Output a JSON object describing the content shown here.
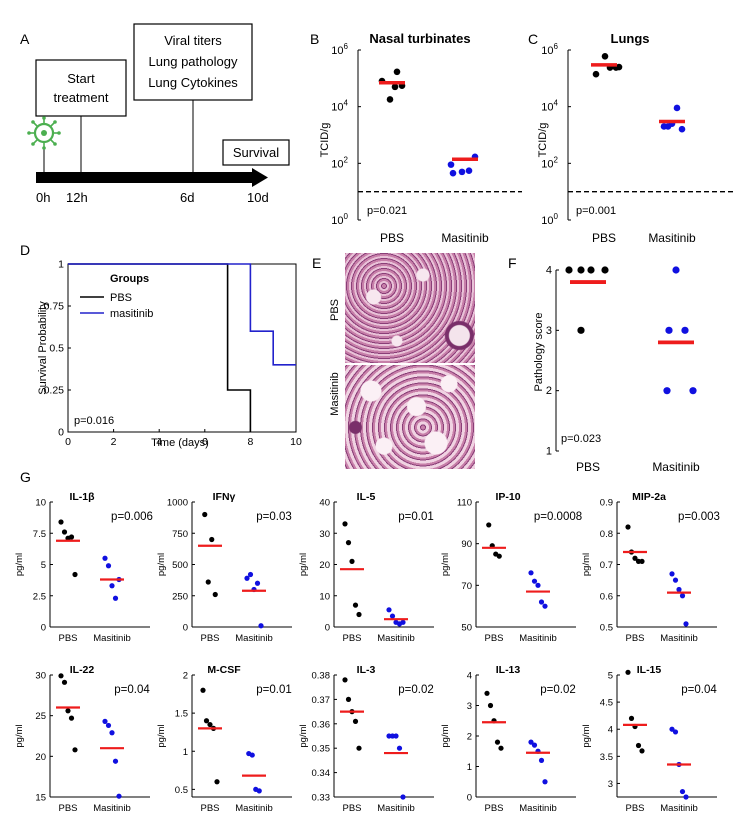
{
  "colors": {
    "accent": "#ee1c1c",
    "pbs_dot": "#000000",
    "masitinib_dot": "#1010e0",
    "masitinib_line": "#2222cc",
    "virus": "#4caf50",
    "tissue_a": "#c77fa9",
    "tissue_b": "#8a3e78",
    "tissue_bg": "#f3dbe8"
  },
  "panelA": {
    "letter": "A",
    "box1": [
      "Start",
      "treatment"
    ],
    "box2": [
      "Viral titers",
      "Lung pathology",
      "Lung Cytokines"
    ],
    "box3": "Survival",
    "time_labels": [
      "0h",
      "12h",
      "6d",
      "10d"
    ],
    "virus_icon": "virus-icon"
  },
  "panelB": {
    "letter": "B",
    "title": "Nasal turbinates",
    "ylabel": "TCID/g",
    "pvalue": "p=0.021"
  },
  "panelC": {
    "letter": "C",
    "title": "Lungs",
    "ylabel": "TCID/g",
    "pvalue": "p=0.001"
  },
  "panelD": {
    "letter": "D",
    "ylabel": "Survival Probability",
    "xlabel": "Time (days)",
    "legend_title": "Groups",
    "legend_pbs": "PBS",
    "legend_masitinib": "masitinib",
    "pvalue": "p=0.016"
  },
  "panelE": {
    "letter": "E",
    "label_top": "PBS",
    "label_bottom": "Masitinib"
  },
  "panelF": {
    "letter": "F",
    "ylabel": "Pathology score",
    "pvalue": "p=0.023"
  },
  "panelG": {
    "letter": "G",
    "ylabel": "pg/ml"
  },
  "chart_data": [
    {
      "id": "B",
      "type": "scatter",
      "title": "Nasal turbinates",
      "ylabel": "TCID/g",
      "yscale": "log",
      "ylim": [
        1,
        1000000
      ],
      "yticks": [
        1,
        100,
        10000,
        1000000
      ],
      "ytick_labels": [
        [
          "10",
          "0"
        ],
        [
          "10",
          "2"
        ],
        [
          "10",
          "4"
        ],
        [
          "10",
          "6"
        ]
      ],
      "categories": [
        "PBS",
        "Masitinib"
      ],
      "groups": [
        {
          "name": "PBS",
          "points": [
            18000,
            80000,
            50000,
            55000,
            170000
          ],
          "mean": 70000
        },
        {
          "name": "Masitinib",
          "points": [
            45,
            50,
            90,
            55,
            170
          ],
          "mean": 140
        }
      ],
      "threshold": 10,
      "pvalue": "p=0.021"
    },
    {
      "id": "C",
      "type": "scatter",
      "title": "Lungs",
      "ylabel": "TCID/g",
      "yscale": "log",
      "ylim": [
        1,
        1000000
      ],
      "yticks": [
        1,
        100,
        10000,
        1000000
      ],
      "ytick_labels": [
        [
          "10",
          "0"
        ],
        [
          "10",
          "2"
        ],
        [
          "10",
          "4"
        ],
        [
          "10",
          "6"
        ]
      ],
      "categories": [
        "PBS",
        "Masitinib"
      ],
      "groups": [
        {
          "name": "PBS",
          "points": [
            140000,
            600000,
            240000,
            240000,
            250000
          ],
          "mean": 300000
        },
        {
          "name": "Masitinib",
          "points": [
            2000,
            9000,
            2500,
            1600,
            2000
          ],
          "mean": 3000
        }
      ],
      "threshold": 10,
      "pvalue": "p=0.001"
    },
    {
      "id": "D",
      "type": "line",
      "xlabel": "Time (days)",
      "ylabel": "Survival Probability",
      "xlim": [
        0,
        10
      ],
      "ylim": [
        0,
        1
      ],
      "xticks": [
        0,
        2,
        4,
        6,
        8,
        10
      ],
      "yticks": [
        0,
        0.25,
        0.5,
        0.75,
        1
      ],
      "series": [
        {
          "name": "PBS",
          "x": [
            0,
            7,
            7,
            8,
            8
          ],
          "y": [
            1,
            1,
            0.25,
            0.25,
            0
          ]
        },
        {
          "name": "masitinib",
          "x": [
            0,
            8,
            8,
            9,
            9,
            10
          ],
          "y": [
            1,
            1,
            0.6,
            0.6,
            0.4,
            0.4
          ]
        }
      ],
      "pvalue": "p=0.016"
    },
    {
      "id": "F",
      "type": "scatter",
      "ylabel": "Pathology score",
      "ylim": [
        1,
        4
      ],
      "yticks": [
        1,
        2,
        3,
        4
      ],
      "categories": [
        "PBS",
        "Masitinib"
      ],
      "groups": [
        {
          "name": "PBS",
          "points": [
            4,
            4,
            4,
            4,
            3
          ],
          "mean": 3.8
        },
        {
          "name": "Masitinib",
          "points": [
            4,
            3,
            3,
            2,
            2
          ],
          "mean": 2.8
        }
      ],
      "pvalue": "p=0.023"
    },
    {
      "id": "IL-1b",
      "type": "scatter",
      "title": "IL-1β",
      "ylabel": "pg/ml",
      "ylim": [
        0,
        10
      ],
      "yticks": [
        0,
        2.5,
        5,
        7.5,
        10
      ],
      "ytick_labels": [
        "0",
        "2.5",
        "5",
        "7.5",
        "10"
      ],
      "categories": [
        "PBS",
        "Masitinib"
      ],
      "groups": [
        {
          "name": "PBS",
          "points": [
            8.4,
            7.6,
            7.1,
            7.2,
            4.2
          ],
          "mean": 6.9
        },
        {
          "name": "Masitinib",
          "points": [
            5.5,
            4.9,
            3.3,
            2.3,
            3.8
          ],
          "mean": 3.8
        }
      ],
      "pvalue": "p=0.006"
    },
    {
      "id": "IFN-g",
      "type": "scatter",
      "title": "IFNγ",
      "ylabel": "pg/ml",
      "ylim": [
        0,
        1000
      ],
      "yticks": [
        0,
        250,
        500,
        750,
        1000
      ],
      "ytick_labels": [
        "0",
        "250",
        "500",
        "750",
        "1000"
      ],
      "categories": [
        "PBS",
        "Masitinib"
      ],
      "groups": [
        {
          "name": "PBS",
          "points": [
            900,
            360,
            700,
            260
          ],
          "mean": 650
        },
        {
          "name": "Masitinib",
          "points": [
            390,
            420,
            300,
            350,
            10
          ],
          "mean": 290
        }
      ],
      "pvalue": "p=0.03"
    },
    {
      "id": "IL-5",
      "type": "scatter",
      "title": "IL-5",
      "ylabel": "pg/ml",
      "ylim": [
        0,
        40
      ],
      "yticks": [
        0,
        10,
        20,
        30,
        40
      ],
      "ytick_labels": [
        "0",
        "10",
        "20",
        "30",
        "40"
      ],
      "categories": [
        "PBS",
        "Masitinib"
      ],
      "groups": [
        {
          "name": "PBS",
          "points": [
            33,
            27,
            21,
            7,
            4
          ],
          "mean": 18.5
        },
        {
          "name": "Masitinib",
          "points": [
            5.5,
            3.5,
            1.5,
            1,
            1.5
          ],
          "mean": 2.5
        }
      ],
      "pvalue": "p=0.01"
    },
    {
      "id": "IP-10",
      "type": "scatter",
      "title": "IP-10",
      "ylabel": "pg/ml",
      "ylim": [
        50,
        110
      ],
      "yticks": [
        50,
        70,
        90,
        110
      ],
      "ytick_labels": [
        "50",
        "70",
        "90",
        "110"
      ],
      "categories": [
        "PBS",
        "Masitinib"
      ],
      "groups": [
        {
          "name": "PBS",
          "points": [
            99,
            89,
            85,
            84
          ],
          "mean": 88
        },
        {
          "name": "Masitinib",
          "points": [
            76,
            72,
            70,
            62,
            60
          ],
          "mean": 67
        }
      ],
      "pvalue": "p=0.0008"
    },
    {
      "id": "MIP-2a",
      "type": "scatter",
      "title": "MIP-2a",
      "ylabel": "pg/ml",
      "ylim": [
        0.5,
        0.9
      ],
      "yticks": [
        0.5,
        0.6,
        0.7,
        0.8,
        0.9
      ],
      "ytick_labels": [
        "0.5",
        "0.6",
        "0.7",
        "0.8",
        "0.9"
      ],
      "categories": [
        "PBS",
        "Masitinib"
      ],
      "groups": [
        {
          "name": "PBS",
          "points": [
            0.82,
            0.74,
            0.72,
            0.71,
            0.71
          ],
          "mean": 0.74
        },
        {
          "name": "Masitinib",
          "points": [
            0.67,
            0.65,
            0.62,
            0.6,
            0.51
          ],
          "mean": 0.61
        }
      ],
      "pvalue": "p=0.003"
    },
    {
      "id": "IL-22",
      "type": "scatter",
      "title": "IL-22",
      "ylabel": "pg/ml",
      "ylim": [
        15,
        30
      ],
      "yticks": [
        15,
        20,
        25,
        30
      ],
      "ytick_labels": [
        "15",
        "20",
        "25",
        "30"
      ],
      "categories": [
        "PBS",
        "Masitinib"
      ],
      "groups": [
        {
          "name": "PBS",
          "points": [
            29.9,
            29.1,
            25.6,
            24.7,
            20.8
          ],
          "mean": 26
        },
        {
          "name": "Masitinib",
          "points": [
            24.3,
            23.8,
            22.9,
            19.4,
            15.1
          ],
          "mean": 21
        }
      ],
      "pvalue": "p=0.04"
    },
    {
      "id": "M-CSF",
      "type": "scatter",
      "title": "M-CSF",
      "ylabel": "pg/ml",
      "ylim": [
        0.4,
        2
      ],
      "yticks": [
        0.5,
        1,
        1.5,
        2
      ],
      "ytick_labels": [
        "0.5",
        "1",
        "1.5",
        "2"
      ],
      "categories": [
        "PBS",
        "Masitinib"
      ],
      "groups": [
        {
          "name": "PBS",
          "points": [
            1.8,
            1.4,
            1.35,
            1.3,
            0.6
          ],
          "mean": 1.3
        },
        {
          "name": "Masitinib",
          "points": [
            0.97,
            0.95,
            0.5,
            0.48
          ],
          "mean": 0.68
        }
      ],
      "pvalue": "p=0.01"
    },
    {
      "id": "IL-3",
      "type": "scatter",
      "title": "IL-3",
      "ylabel": "pg/ml",
      "ylim": [
        0.33,
        0.38
      ],
      "yticks": [
        0.33,
        0.34,
        0.35,
        0.36,
        0.37,
        0.38
      ],
      "ytick_labels": [
        "0.33",
        "0.34",
        "0.35",
        "0.36",
        "0.37",
        "0.38"
      ],
      "categories": [
        "PBS",
        "Masitinib"
      ],
      "groups": [
        {
          "name": "PBS",
          "points": [
            0.378,
            0.37,
            0.365,
            0.361,
            0.35
          ],
          "mean": 0.365
        },
        {
          "name": "Masitinib",
          "points": [
            0.355,
            0.355,
            0.355,
            0.35,
            0.33
          ],
          "mean": 0.348
        }
      ],
      "pvalue": "p=0.02"
    },
    {
      "id": "IL-13",
      "type": "scatter",
      "title": "IL-13",
      "ylabel": "pg/ml",
      "ylim": [
        0,
        4
      ],
      "yticks": [
        0,
        1,
        2,
        3,
        4
      ],
      "ytick_labels": [
        "0",
        "1",
        "2",
        "3",
        "4"
      ],
      "categories": [
        "PBS",
        "Masitinib"
      ],
      "groups": [
        {
          "name": "PBS",
          "points": [
            3.4,
            3,
            2.5,
            1.8,
            1.6
          ],
          "mean": 2.45
        },
        {
          "name": "Masitinib",
          "points": [
            1.8,
            1.7,
            1.5,
            1.2,
            0.5
          ],
          "mean": 1.45
        }
      ],
      "pvalue": "p=0.02"
    },
    {
      "id": "IL-15",
      "type": "scatter",
      "title": "IL-15",
      "ylabel": "pg/ml",
      "ylim": [
        2.75,
        5
      ],
      "yticks": [
        3,
        3.5,
        4,
        4.5,
        5
      ],
      "ytick_labels": [
        "3",
        "3.5",
        "4",
        "4.5",
        "5"
      ],
      "categories": [
        "PBS",
        "Masitinib"
      ],
      "groups": [
        {
          "name": "PBS",
          "points": [
            5.05,
            4.2,
            4.05,
            3.7,
            3.6
          ],
          "mean": 4.08
        },
        {
          "name": "Masitinib",
          "points": [
            4.0,
            3.95,
            3.35,
            2.85,
            2.75
          ],
          "mean": 3.35
        }
      ],
      "pvalue": "p=0.04"
    }
  ]
}
